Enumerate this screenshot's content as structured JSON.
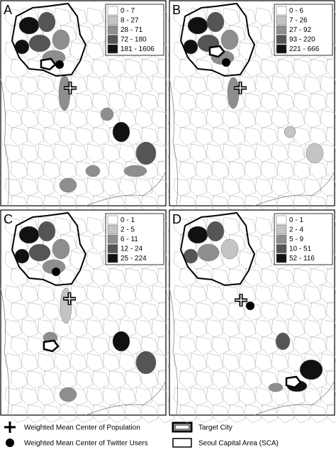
{
  "panels": [
    {
      "label": "A",
      "legend": [
        {
          "label": "0 - 7",
          "color": "#ffffff"
        },
        {
          "label": "8 - 27",
          "color": "#c4c4c4"
        },
        {
          "label": "28 - 71",
          "color": "#8e8e8e"
        },
        {
          "label": "72 - 180",
          "color": "#555555"
        },
        {
          "label": "181 - 1606",
          "color": "#111111"
        }
      ]
    },
    {
      "label": "B",
      "legend": [
        {
          "label": "0 - 6",
          "color": "#ffffff"
        },
        {
          "label": "7 - 26",
          "color": "#c4c4c4"
        },
        {
          "label": "27 - 92",
          "color": "#8e8e8e"
        },
        {
          "label": "93 - 220",
          "color": "#555555"
        },
        {
          "label": "221 - 666",
          "color": "#111111"
        }
      ]
    },
    {
      "label": "C",
      "legend": [
        {
          "label": "0 - 1",
          "color": "#ffffff"
        },
        {
          "label": "2 - 5",
          "color": "#c4c4c4"
        },
        {
          "label": "6 - 11",
          "color": "#8e8e8e"
        },
        {
          "label": "12 - 24",
          "color": "#555555"
        },
        {
          "label": "25 - 224",
          "color": "#111111"
        }
      ]
    },
    {
      "label": "D",
      "legend": [
        {
          "label": "0 - 1",
          "color": "#ffffff"
        },
        {
          "label": "2 - 4",
          "color": "#c4c4c4"
        },
        {
          "label": "5 - 9",
          "color": "#8e8e8e"
        },
        {
          "label": "10 - 51",
          "color": "#555555"
        },
        {
          "label": "52 - 116",
          "color": "#111111"
        }
      ]
    }
  ],
  "key": [
    {
      "label": "Weighted Mean Center of Population"
    },
    {
      "label": "Weighted Mean Center of Twitter Users"
    },
    {
      "label": "Target City"
    },
    {
      "label": "Seoul Capital Area (SCA)"
    }
  ]
}
